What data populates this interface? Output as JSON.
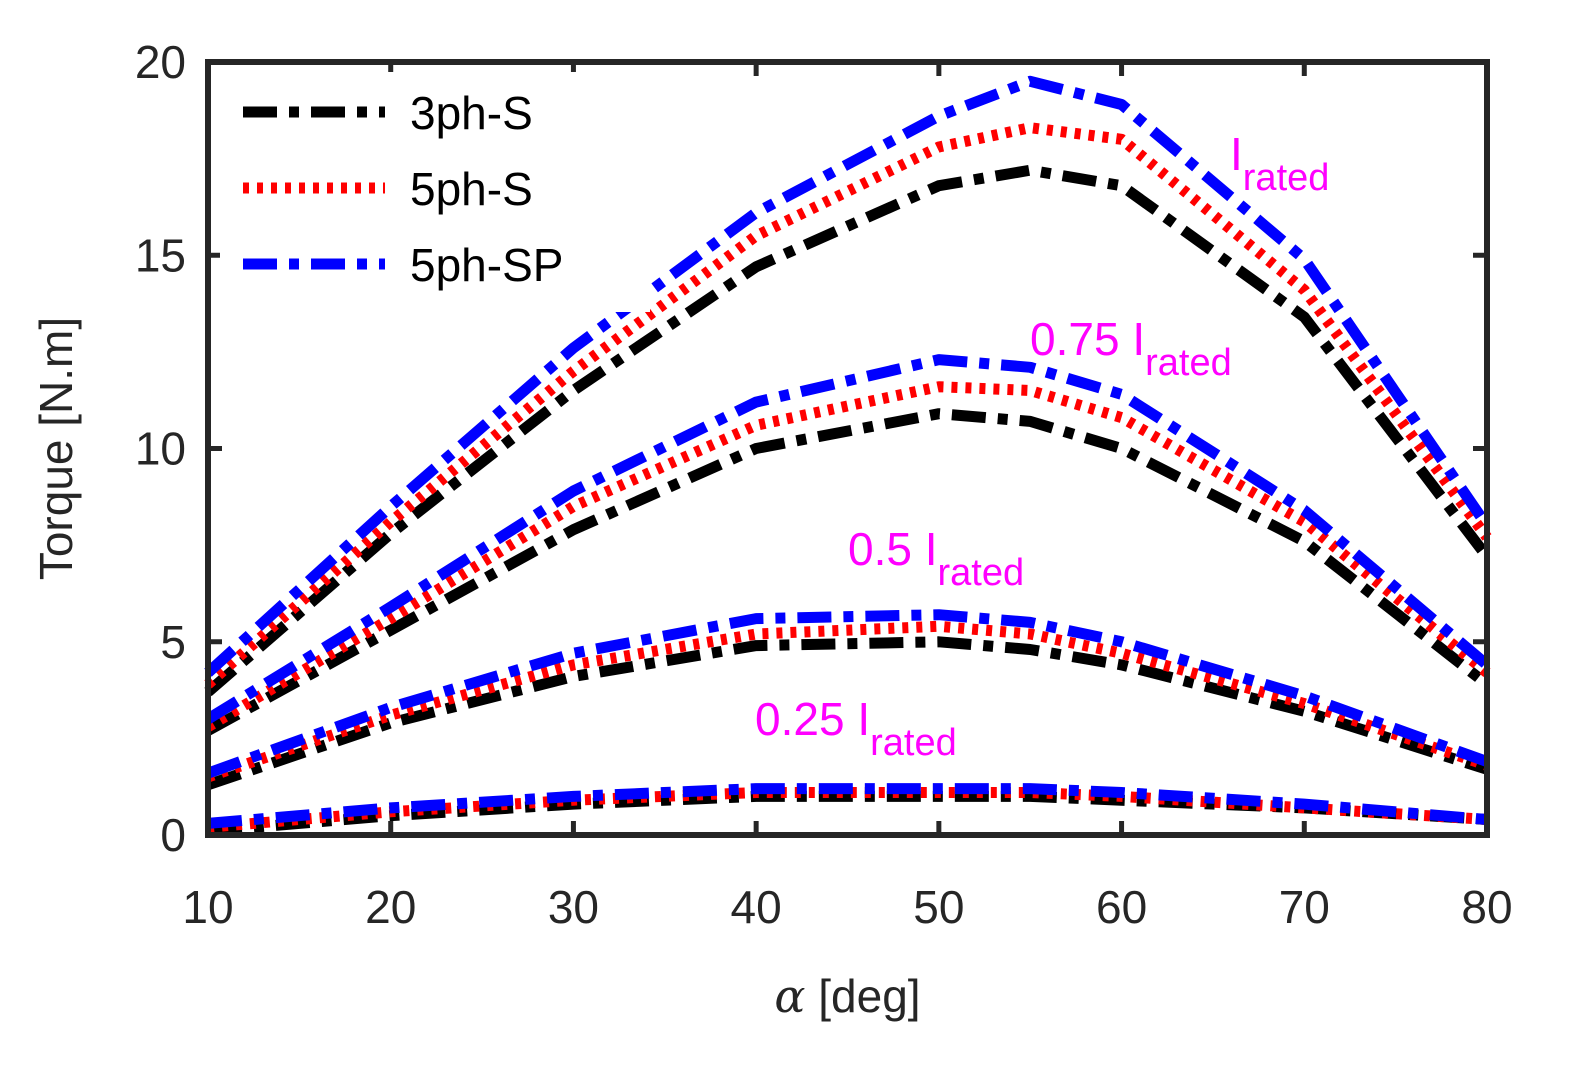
{
  "chart_data": {
    "type": "line",
    "title": "",
    "xlabel": "[deg]",
    "xlabel_symbol": "α",
    "ylabel": "Torque [N.m]",
    "xlim": [
      10,
      80
    ],
    "ylim": [
      0,
      20
    ],
    "xticks": [
      "10",
      "20",
      "30",
      "40",
      "50",
      "60",
      "70",
      "80"
    ],
    "yticks": [
      "0",
      "5",
      "10",
      "15",
      "20"
    ],
    "x": [
      10,
      20,
      30,
      40,
      50,
      55,
      60,
      70,
      80
    ],
    "legend_position": "top-left",
    "legend": [
      {
        "name": "3ph-S",
        "color": "#000000",
        "style": "dash-dot"
      },
      {
        "name": "5ph-S",
        "color": "#ff0000",
        "style": "dotted"
      },
      {
        "name": "5ph-SP",
        "color": "#0000ff",
        "style": "dash-dot"
      }
    ],
    "annotation_color": "#ff00ff",
    "groups": [
      {
        "label_prefix": "",
        "label_main": "I",
        "label_sub": "rated",
        "series": [
          {
            "name": "3ph-S",
            "values": [
              3.7,
              7.8,
              11.5,
              14.7,
              16.8,
              17.2,
              16.8,
              13.4,
              7.2
            ]
          },
          {
            "name": "5ph-S",
            "values": [
              3.9,
              8.1,
              12.0,
              15.5,
              17.8,
              18.3,
              18.0,
              14.1,
              7.7
            ]
          },
          {
            "name": "5ph-SP",
            "values": [
              4.2,
              8.5,
              12.6,
              16.1,
              18.6,
              19.5,
              18.9,
              14.9,
              8.0
            ]
          }
        ]
      },
      {
        "label_prefix": "0.75 ",
        "label_main": "I",
        "label_sub": "rated",
        "series": [
          {
            "name": "3ph-S",
            "values": [
              2.7,
              5.3,
              7.9,
              10.0,
              10.9,
              10.7,
              10.0,
              7.6,
              3.9
            ]
          },
          {
            "name": "5ph-S",
            "values": [
              2.8,
              5.6,
              8.5,
              10.6,
              11.6,
              11.5,
              10.8,
              8.1,
              4.2
            ]
          },
          {
            "name": "5ph-SP",
            "values": [
              3.0,
              5.9,
              8.9,
              11.2,
              12.3,
              12.1,
              11.4,
              8.4,
              4.4
            ]
          }
        ]
      },
      {
        "label_prefix": "0.5 ",
        "label_main": "I",
        "label_sub": "rated",
        "series": [
          {
            "name": "3ph-S",
            "values": [
              1.3,
              2.9,
              4.1,
              4.9,
              5.0,
              4.8,
              4.4,
              3.2,
              1.7
            ]
          },
          {
            "name": "5ph-S",
            "values": [
              1.5,
              3.1,
              4.4,
              5.2,
              5.4,
              5.2,
              4.7,
              3.4,
              1.8
            ]
          },
          {
            "name": "5ph-SP",
            "values": [
              1.6,
              3.3,
              4.7,
              5.6,
              5.7,
              5.5,
              5.0,
              3.6,
              1.9
            ]
          }
        ]
      },
      {
        "label_prefix": "0.25 ",
        "label_main": "I",
        "label_sub": "rated",
        "series": [
          {
            "name": "3ph-S",
            "values": [
              0.1,
              0.5,
              0.8,
              1.0,
              1.0,
              1.0,
              0.9,
              0.7,
              0.4
            ]
          },
          {
            "name": "5ph-S",
            "values": [
              0.2,
              0.6,
              0.9,
              1.1,
              1.1,
              1.1,
              1.0,
              0.7,
              0.4
            ]
          },
          {
            "name": "5ph-SP",
            "values": [
              0.3,
              0.7,
              1.0,
              1.2,
              1.2,
              1.2,
              1.1,
              0.8,
              0.4
            ]
          }
        ]
      }
    ]
  }
}
